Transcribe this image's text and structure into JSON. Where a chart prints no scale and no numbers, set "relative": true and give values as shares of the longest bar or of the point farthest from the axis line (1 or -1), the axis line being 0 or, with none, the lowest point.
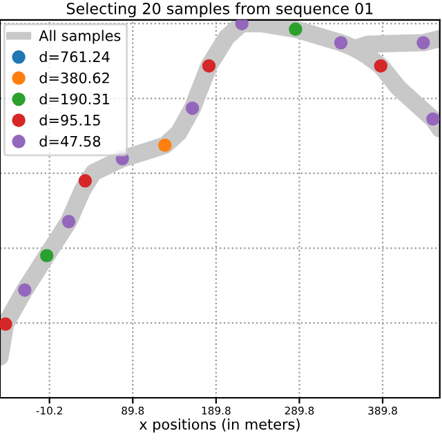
{
  "chart_data": {
    "type": "line",
    "title": "Selecting 20 samples from sequence 01",
    "xlabel": "x positions (in meters)",
    "relative": true,
    "xlim": [
      -69.6,
      458.4
    ],
    "xticks": [
      -10.2,
      89.8,
      189.8,
      289.8,
      389.8
    ],
    "tick_labels": "x",
    "grid": true,
    "legend": "top left",
    "series": [
      {
        "name": "All samples",
        "color": "#c8c8c8",
        "line_style": "solid",
        "marker": "none",
        "x": [
          -69.6,
          -63.0,
          -39.9,
          -13.5,
          12.9,
          29.4,
          42.6,
          77.3,
          103.7,
          128.4,
          144.9,
          161.4,
          181.2,
          202.7,
          220.8,
          243.9,
          285.2,
          339.6,
          356.1,
          372.6,
          387.5,
          408.9,
          450.2,
          458.4
        ],
        "values": [
          0.109,
          0.197,
          0.288,
          0.38,
          0.471,
          0.555,
          0.602,
          0.639,
          0.657,
          0.675,
          0.708,
          0.774,
          0.887,
          0.964,
          1.0,
          1.0,
          0.985,
          0.949,
          0.934,
          0.912,
          0.887,
          0.828,
          0.745,
          0.719
        ]
      },
      {
        "color": "#c8c8c8",
        "line_style": "solid",
        "marker": "none",
        "x": [
          356.1,
          372.6,
          438.6,
          458.4
        ],
        "values": [
          0.934,
          0.945,
          0.949,
          0.96
        ]
      },
      {
        "name": "d=761.24",
        "type": "scatter",
        "color": "#1f77b4",
        "marker": "circle"
      },
      {
        "name": "d=380.62",
        "type": "scatter",
        "color": "#ff7f0e",
        "marker": "circle",
        "x": [
          128.4
        ],
        "values": [
          0.675
        ]
      },
      {
        "name": "d=190.31",
        "type": "scatter",
        "color": "#2ca02c",
        "marker": "circle",
        "x": [
          -13.5,
          285.2
        ],
        "values": [
          0.38,
          0.985
        ]
      },
      {
        "name": "d=95.15",
        "type": "scatter",
        "color": "#d62728",
        "marker": "circle",
        "x": [
          -63.0,
          32.7,
          181.2,
          387.5
        ],
        "values": [
          0.197,
          0.58,
          0.887,
          0.887
        ]
      },
      {
        "name": "d=47.58",
        "type": "scatter",
        "color": "#9467bd",
        "marker": "circle",
        "x": [
          -39.9,
          12.9,
          77.3,
          161.4,
          220.8,
          339.6,
          438.6,
          450.2
        ],
        "values": [
          0.288,
          0.471,
          0.639,
          0.774,
          1.0,
          0.949,
          0.949,
          0.745
        ]
      }
    ]
  }
}
